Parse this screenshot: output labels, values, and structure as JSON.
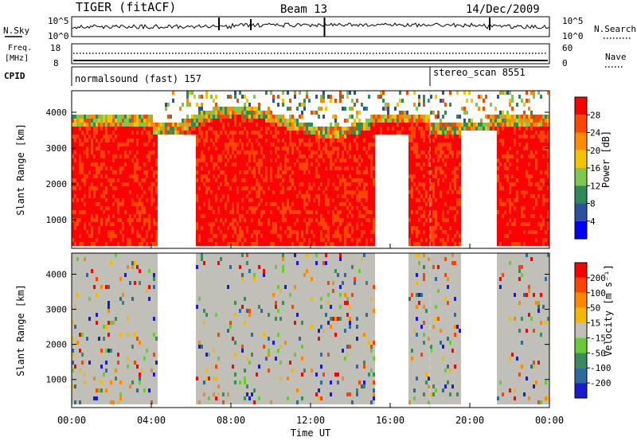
{
  "header": {
    "radar_title": "TIGER (fitACF)",
    "beam": "Beam 13",
    "date": "14/Dec/2009"
  },
  "top_panels": {
    "nsky_label": "N.Sky",
    "nsearch_label": "N.Search",
    "freq_label_1": "Freq.",
    "freq_label_2": "[MHz]",
    "nave_label": "Nave",
    "cpid_label": "CPID",
    "noise_left_ticks": [
      "10^5",
      "10^0"
    ],
    "noise_right_ticks": [
      "10^5",
      "10^0"
    ],
    "freq_left_ticks": [
      "18",
      "8"
    ],
    "freq_right_ticks": [
      "60",
      "0"
    ],
    "cpid_segments": [
      {
        "label": "normalsound (fast) 157",
        "start_hour": 0
      },
      {
        "label": "stereo_scan 8551",
        "start_hour": 18
      }
    ]
  },
  "chart_data": [
    {
      "type": "heatmap",
      "xlabel": "Time UT",
      "ylabel": "Slant Range [km]",
      "x_ticks": [
        "00:00",
        "04:00",
        "08:00",
        "12:00",
        "16:00",
        "20:00",
        "00:00"
      ],
      "xlim_hours": [
        0,
        24
      ],
      "ylim_km": [
        200,
        4600
      ],
      "y_ticks": [
        1000,
        2000,
        3000,
        4000
      ],
      "colorbar": {
        "label": "Power [dB]",
        "ticks": [
          4,
          8,
          12,
          16,
          20,
          24,
          28
        ],
        "range": [
          0,
          32
        ],
        "colors": [
          "#0000ff",
          "#2c4fa0",
          "#2e8b57",
          "#7ec850",
          "#f5c400",
          "#ff8c00",
          "#ff4500",
          "#ff0000"
        ]
      }
    },
    {
      "type": "heatmap",
      "xlabel": "Time UT",
      "ylabel": "Slant Range [km]",
      "x_ticks": [
        "00:00",
        "04:00",
        "08:00",
        "12:00",
        "16:00",
        "20:00",
        "00:00"
      ],
      "xlim_hours": [
        0,
        24
      ],
      "ylim_km": [
        200,
        4600
      ],
      "y_ticks": [
        1000,
        2000,
        3000,
        4000
      ],
      "colorbar": {
        "label": "Velocity [m s⁻¹]",
        "ticks": [
          "200",
          "100",
          "50",
          "15",
          "-15",
          "-50",
          "-100",
          "-200"
        ],
        "colors": [
          "#1a1ad0",
          "#2c6aa0",
          "#3a8a5a",
          "#66cc33",
          "#c0c0b8",
          "#f5b800",
          "#ff8800",
          "#ff4400",
          "#ff0000"
        ]
      }
    }
  ],
  "colors": {
    "power_low": "#0000ff",
    "power_high": "#ff0000",
    "ground_scatter": "#c0c0b8",
    "cpid_change_line": "#c0c0c0"
  }
}
